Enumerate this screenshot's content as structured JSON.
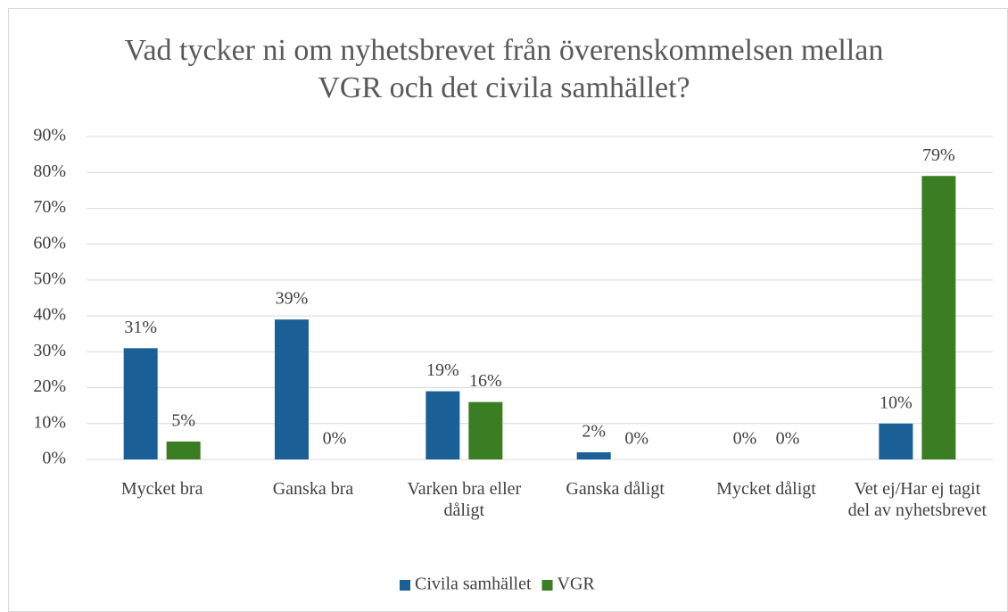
{
  "chart_data": {
    "type": "bar",
    "title": "Vad tycker ni om nyhetsbrevet från överenskommelsen mellan VGR och det civila samhället?",
    "categories": [
      "Mycket bra",
      "Ganska bra",
      "Varken bra eller dåligt",
      "Ganska dåligt",
      "Mycket dåligt",
      "Vet ej/Har ej tagit del av nyhetsbrevet"
    ],
    "series": [
      {
        "name": "Civila samhället",
        "color": "#1b5f97",
        "values": [
          31,
          39,
          19,
          2,
          0,
          10
        ],
        "value_labels": [
          "31%",
          "39%",
          "19%",
          "2%",
          "0%",
          "10%"
        ]
      },
      {
        "name": "VGR",
        "color": "#3a7d22",
        "values": [
          5,
          0,
          16,
          0,
          0,
          79
        ],
        "value_labels": [
          "5%",
          "0%",
          "16%",
          "0%",
          "0%",
          "79%"
        ]
      }
    ],
    "ylim": [
      0,
      90
    ],
    "yticks": [
      {
        "value": 0,
        "label": "0%"
      },
      {
        "value": 10,
        "label": "10%"
      },
      {
        "value": 20,
        "label": "20%"
      },
      {
        "value": 30,
        "label": "30%"
      },
      {
        "value": 40,
        "label": "40%"
      },
      {
        "value": 50,
        "label": "50%"
      },
      {
        "value": 60,
        "label": "60%"
      },
      {
        "value": 70,
        "label": "70%"
      },
      {
        "value": 80,
        "label": "80%"
      },
      {
        "value": 90,
        "label": "90%"
      }
    ],
    "grid": true,
    "legend": "bottom"
  }
}
